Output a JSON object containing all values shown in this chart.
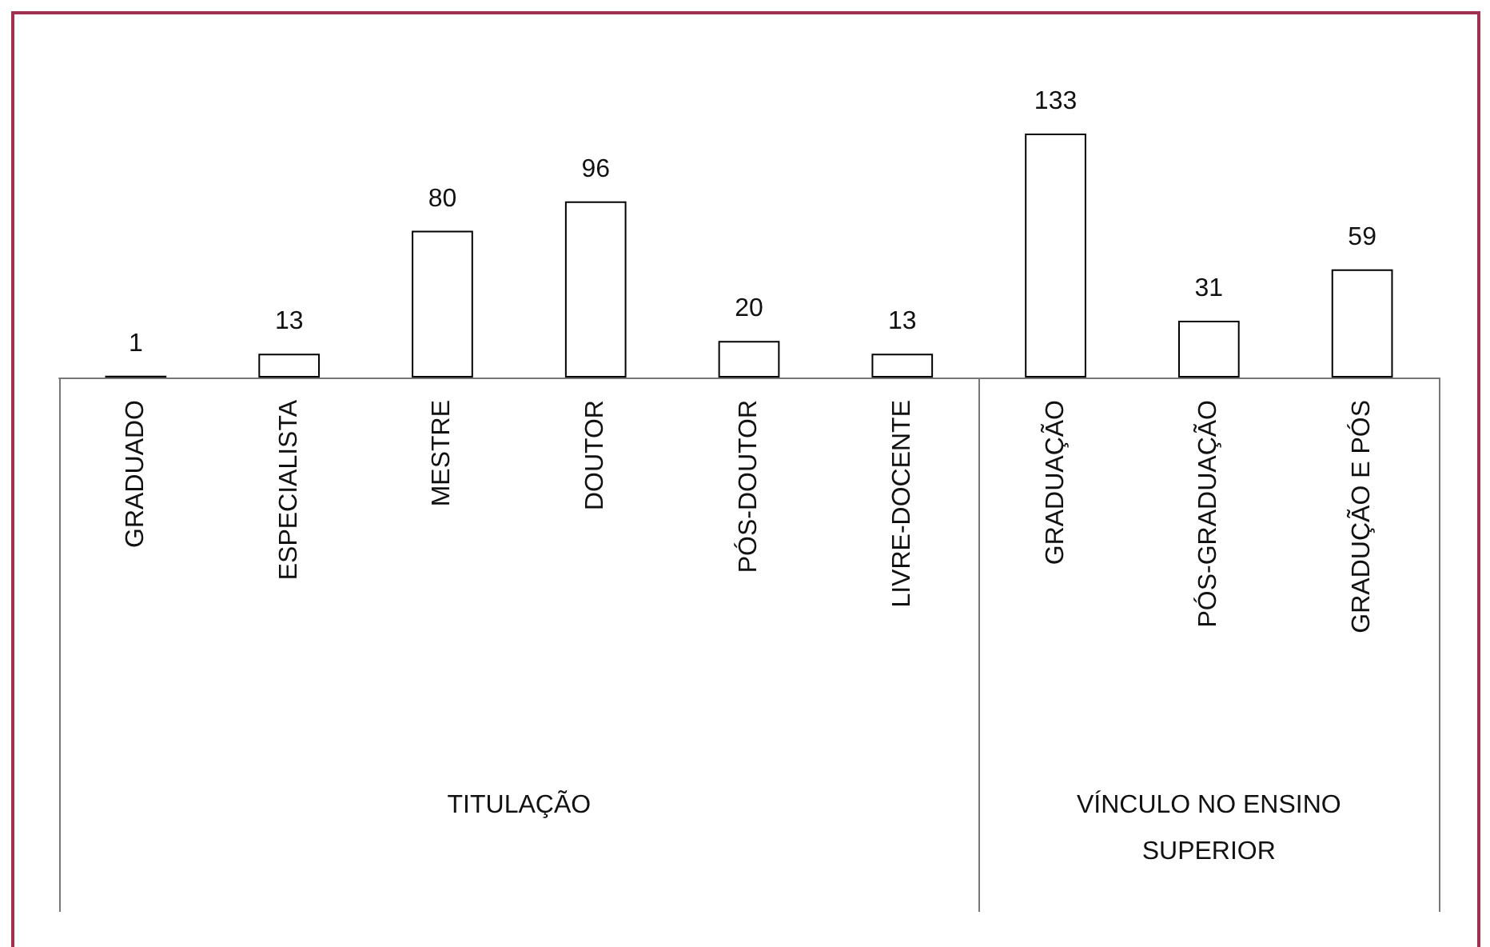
{
  "chart_data": {
    "type": "bar",
    "categories": [
      "GRADUADO",
      "ESPECIALISTA",
      "MESTRE",
      "DOUTOR",
      "PÓS-DOUTOR",
      "LIVRE-DOCENTE",
      "GRADUAÇÃO",
      "PÓS-GRADUAÇÃO",
      "GRADUÇÃO E PÓS"
    ],
    "values": [
      1,
      13,
      80,
      96,
      20,
      13,
      133,
      31,
      59
    ],
    "color": "#ffffff",
    "data_labels": true,
    "tick_labels": "x",
    "annotations": [
      "TITULAÇÃO",
      "VÍNCULO NO ENSINO SUPERIOR"
    ]
  }
}
